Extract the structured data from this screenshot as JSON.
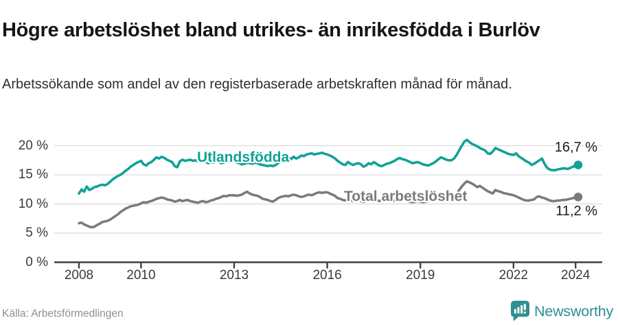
{
  "header": {
    "title": "Högre arbetslöshet bland utrikes- än inrikesfödda i Burlöv",
    "subtitle": "Arbetssökande som andel av den registerbaserade arbetskraften månad för månad."
  },
  "footer": {
    "source": "Källa: Arbetsförmedlingen",
    "brand": "Newsworthy",
    "brand_icon": "newsworthy-speech-bubble-bar-chart",
    "brand_color": "#2f8e8e"
  },
  "chart_data": {
    "type": "line",
    "title": "Högre arbetslöshet bland utrikes- än inrikesfödda i Burlöv",
    "xlabel": "",
    "ylabel": "",
    "x_unit": "month",
    "x_start": 2008.0,
    "x_step": 0.0833333,
    "ylim": [
      0,
      20
    ],
    "grid": "horizontal",
    "grid_color": "#dadada",
    "axis_color": "#3f3f3f",
    "yticks": [
      {
        "value": 0,
        "label": "0 %"
      },
      {
        "value": 5,
        "label": "5 %"
      },
      {
        "value": 10,
        "label": "10 %"
      },
      {
        "value": 15,
        "label": "15 %"
      },
      {
        "value": 20,
        "label": "20 %"
      }
    ],
    "xticks": [
      {
        "value": 2008,
        "label": "2008"
      },
      {
        "value": 2010,
        "label": "2010"
      },
      {
        "value": 2013,
        "label": "2013"
      },
      {
        "value": 2016,
        "label": "2016"
      },
      {
        "value": 2019,
        "label": "2019"
      },
      {
        "value": 2022,
        "label": "2022"
      },
      {
        "value": 2024,
        "label": "2024"
      }
    ],
    "series": [
      {
        "name": "Utlandsfödda",
        "color": "#11a296",
        "end_label": "16,7 %",
        "end_value": 16.7,
        "values": [
          11.8,
          12.5,
          12.1,
          13.0,
          12.4,
          12.6,
          12.9,
          13.0,
          13.2,
          13.3,
          13.2,
          13.4,
          13.8,
          14.2,
          14.5,
          14.8,
          15.0,
          15.3,
          15.7,
          16.0,
          16.4,
          16.7,
          17.0,
          17.2,
          17.4,
          16.8,
          16.6,
          17.0,
          17.2,
          17.6,
          18.0,
          17.8,
          18.1,
          17.9,
          17.6,
          17.4,
          17.2,
          16.5,
          16.3,
          17.3,
          17.6,
          17.4,
          17.5,
          17.6,
          17.4,
          17.5,
          17.3,
          17.5,
          17.4,
          17.2,
          17.0,
          17.2,
          17.1,
          17.3,
          17.2,
          17.0,
          17.1,
          17.3,
          17.2,
          17.4,
          17.3,
          17.1,
          17.0,
          16.8,
          16.9,
          17.1,
          17.0,
          16.9,
          17.1,
          17.0,
          16.8,
          16.7,
          16.6,
          16.5,
          16.6,
          16.5,
          16.7,
          17.0,
          17.3,
          17.6,
          17.9,
          18.0,
          17.7,
          18.1,
          17.8,
          18.0,
          18.3,
          18.2,
          18.5,
          18.6,
          18.7,
          18.5,
          18.6,
          18.7,
          18.8,
          18.6,
          18.5,
          18.3,
          18.1,
          17.8,
          17.4,
          17.1,
          16.8,
          16.7,
          17.2,
          16.9,
          16.7,
          16.9,
          17.0,
          16.8,
          16.4,
          16.6,
          17.0,
          16.8,
          17.2,
          16.9,
          16.6,
          16.5,
          16.7,
          16.9,
          17.0,
          17.2,
          17.4,
          17.7,
          17.9,
          17.7,
          17.6,
          17.4,
          17.2,
          17.0,
          17.1,
          17.2,
          17.0,
          16.8,
          16.7,
          16.6,
          16.8,
          17.0,
          17.3,
          17.7,
          18.0,
          17.8,
          17.6,
          17.5,
          17.5,
          17.8,
          18.4,
          19.2,
          20.0,
          20.7,
          21.0,
          20.6,
          20.3,
          20.1,
          19.9,
          19.6,
          19.4,
          19.2,
          18.7,
          18.6,
          19.0,
          19.6,
          19.4,
          19.2,
          19.0,
          18.8,
          18.6,
          18.5,
          18.4,
          18.7,
          18.2,
          17.9,
          17.6,
          17.3,
          17.1,
          16.7,
          16.9,
          17.2,
          17.5,
          17.8,
          16.9,
          16.2,
          15.9,
          15.8,
          15.8,
          15.9,
          16.0,
          16.1,
          16.1,
          16.0,
          16.2,
          16.4,
          16.5,
          16.7
        ]
      },
      {
        "name": "Total arbetslöshet",
        "color": "#7b7b7b",
        "end_label": "11,2 %",
        "end_value": 11.2,
        "values": [
          6.7,
          6.8,
          6.5,
          6.3,
          6.1,
          6.0,
          6.1,
          6.4,
          6.6,
          6.9,
          7.0,
          7.1,
          7.3,
          7.6,
          7.9,
          8.2,
          8.6,
          8.9,
          9.2,
          9.4,
          9.6,
          9.7,
          9.8,
          9.9,
          10.1,
          10.3,
          10.2,
          10.4,
          10.5,
          10.7,
          10.9,
          11.0,
          11.1,
          11.0,
          10.8,
          10.7,
          10.6,
          10.4,
          10.5,
          10.7,
          10.5,
          10.6,
          10.7,
          10.5,
          10.4,
          10.3,
          10.2,
          10.4,
          10.5,
          10.3,
          10.4,
          10.6,
          10.7,
          10.9,
          11.0,
          11.2,
          11.4,
          11.3,
          11.5,
          11.5,
          11.5,
          11.4,
          11.5,
          11.6,
          11.9,
          12.1,
          11.8,
          11.6,
          11.5,
          11.4,
          11.2,
          10.9,
          10.8,
          10.7,
          10.5,
          10.4,
          10.7,
          11.0,
          11.2,
          11.3,
          11.4,
          11.3,
          11.5,
          11.6,
          11.5,
          11.3,
          11.2,
          11.3,
          11.5,
          11.6,
          11.5,
          11.7,
          11.9,
          12.0,
          11.9,
          12.0,
          12.0,
          11.8,
          11.6,
          11.4,
          11.0,
          10.9,
          10.7,
          10.6,
          10.8,
          10.7,
          10.5,
          10.6,
          10.7,
          10.5,
          10.4,
          10.5,
          10.7,
          10.6,
          10.8,
          10.7,
          10.5,
          10.6,
          10.7,
          10.8,
          10.7,
          10.6,
          10.5,
          10.6,
          10.7,
          10.8,
          10.6,
          10.5,
          10.4,
          10.3,
          10.4,
          10.5,
          10.4,
          10.3,
          10.4,
          10.5,
          10.6,
          10.7,
          10.8,
          10.7,
          10.6,
          10.5,
          10.6,
          10.7,
          10.8,
          11.0,
          11.6,
          12.4,
          13.0,
          13.5,
          13.9,
          13.7,
          13.5,
          13.2,
          12.9,
          13.1,
          12.8,
          12.5,
          12.2,
          12.0,
          11.8,
          12.4,
          12.2,
          12.1,
          11.9,
          11.8,
          11.7,
          11.6,
          11.5,
          11.3,
          11.1,
          10.9,
          10.7,
          10.6,
          10.6,
          10.7,
          10.8,
          11.2,
          11.3,
          11.1,
          11.0,
          10.8,
          10.6,
          10.5,
          10.5,
          10.6,
          10.6,
          10.7,
          10.7,
          10.8,
          10.9,
          11.0,
          11.1,
          11.2
        ]
      }
    ]
  }
}
